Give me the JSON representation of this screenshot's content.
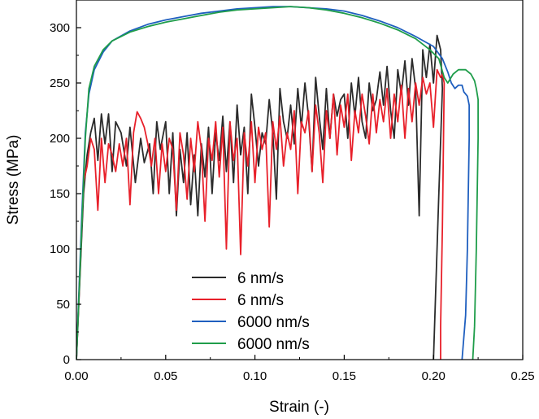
{
  "chart_data": {
    "type": "line",
    "xlabel": "Strain (-)",
    "ylabel": "Stress (MPa)",
    "xlim": [
      0,
      0.25
    ],
    "ylim": [
      0,
      325
    ],
    "xticks": [
      0.0,
      0.05,
      0.1,
      0.15,
      0.2,
      0.25
    ],
    "xtick_labels": [
      "0.00",
      "0.05",
      "0.10",
      "0.15",
      "0.20",
      "0.25"
    ],
    "yticks": [
      0,
      50,
      100,
      150,
      200,
      250,
      300
    ],
    "ytick_labels": [
      "0",
      "50",
      "100",
      "150",
      "200",
      "250",
      "300"
    ],
    "grid": false,
    "legend_position": "bottom-center",
    "series": [
      {
        "name": "6 nm/s",
        "color": "#2b2b2b",
        "points": [
          [
            0.0,
            0
          ],
          [
            0.004,
            150
          ],
          [
            0.006,
            185
          ],
          [
            0.008,
            205
          ],
          [
            0.01,
            218
          ],
          [
            0.012,
            180
          ],
          [
            0.014,
            222
          ],
          [
            0.016,
            195
          ],
          [
            0.018,
            222
          ],
          [
            0.02,
            170
          ],
          [
            0.022,
            215
          ],
          [
            0.025,
            205
          ],
          [
            0.028,
            175
          ],
          [
            0.03,
            210
          ],
          [
            0.033,
            160
          ],
          [
            0.036,
            200
          ],
          [
            0.038,
            178
          ],
          [
            0.041,
            195
          ],
          [
            0.043,
            150
          ],
          [
            0.045,
            215
          ],
          [
            0.047,
            190
          ],
          [
            0.05,
            215
          ],
          [
            0.052,
            150
          ],
          [
            0.054,
            205
          ],
          [
            0.056,
            130
          ],
          [
            0.058,
            190
          ],
          [
            0.06,
            160
          ],
          [
            0.062,
            205
          ],
          [
            0.064,
            140
          ],
          [
            0.066,
            185
          ],
          [
            0.068,
            130
          ],
          [
            0.07,
            195
          ],
          [
            0.072,
            165
          ],
          [
            0.074,
            210
          ],
          [
            0.076,
            150
          ],
          [
            0.078,
            205
          ],
          [
            0.08,
            180
          ],
          [
            0.082,
            220
          ],
          [
            0.084,
            170
          ],
          [
            0.086,
            215
          ],
          [
            0.088,
            160
          ],
          [
            0.09,
            230
          ],
          [
            0.092,
            185
          ],
          [
            0.094,
            210
          ],
          [
            0.096,
            150
          ],
          [
            0.098,
            240
          ],
          [
            0.1,
            210
          ],
          [
            0.102,
            175
          ],
          [
            0.104,
            205
          ],
          [
            0.106,
            195
          ],
          [
            0.108,
            235
          ],
          [
            0.11,
            205
          ],
          [
            0.112,
            145
          ],
          [
            0.114,
            245
          ],
          [
            0.116,
            215
          ],
          [
            0.118,
            200
          ],
          [
            0.12,
            230
          ],
          [
            0.122,
            195
          ],
          [
            0.124,
            245
          ],
          [
            0.126,
            210
          ],
          [
            0.128,
            250
          ],
          [
            0.13,
            220
          ],
          [
            0.132,
            170
          ],
          [
            0.134,
            255
          ],
          [
            0.136,
            220
          ],
          [
            0.138,
            190
          ],
          [
            0.14,
            245
          ],
          [
            0.142,
            200
          ],
          [
            0.144,
            240
          ],
          [
            0.146,
            220
          ],
          [
            0.148,
            235
          ],
          [
            0.15,
            240
          ],
          [
            0.152,
            200
          ],
          [
            0.154,
            250
          ],
          [
            0.156,
            220
          ],
          [
            0.158,
            255
          ],
          [
            0.16,
            215
          ],
          [
            0.162,
            200
          ],
          [
            0.164,
            250
          ],
          [
            0.166,
            225
          ],
          [
            0.168,
            235
          ],
          [
            0.17,
            260
          ],
          [
            0.172,
            230
          ],
          [
            0.174,
            265
          ],
          [
            0.176,
            225
          ],
          [
            0.178,
            200
          ],
          [
            0.18,
            262
          ],
          [
            0.182,
            240
          ],
          [
            0.184,
            270
          ],
          [
            0.186,
            230
          ],
          [
            0.188,
            272
          ],
          [
            0.19,
            245
          ],
          [
            0.192,
            130
          ],
          [
            0.194,
            280
          ],
          [
            0.196,
            255
          ],
          [
            0.198,
            285
          ],
          [
            0.2,
            250
          ],
          [
            0.202,
            293
          ],
          [
            0.204,
            280
          ],
          [
            0.205,
            245
          ],
          [
            0.203,
            150
          ],
          [
            0.201,
            50
          ],
          [
            0.2,
            0
          ]
        ]
      },
      {
        "name": "6 nm/s",
        "color": "#e8202a",
        "points": [
          [
            0.0,
            0
          ],
          [
            0.004,
            160
          ],
          [
            0.006,
            175
          ],
          [
            0.008,
            200
          ],
          [
            0.01,
            190
          ],
          [
            0.012,
            135
          ],
          [
            0.014,
            200
          ],
          [
            0.016,
            160
          ],
          [
            0.018,
            195
          ],
          [
            0.02,
            185
          ],
          [
            0.022,
            170
          ],
          [
            0.024,
            195
          ],
          [
            0.026,
            175
          ],
          [
            0.028,
            200
          ],
          [
            0.03,
            140
          ],
          [
            0.032,
            205
          ],
          [
            0.034,
            224
          ],
          [
            0.036,
            218
          ],
          [
            0.038,
            210
          ],
          [
            0.04,
            195
          ],
          [
            0.042,
            175
          ],
          [
            0.044,
            200
          ],
          [
            0.046,
            150
          ],
          [
            0.048,
            195
          ],
          [
            0.05,
            170
          ],
          [
            0.052,
            200
          ],
          [
            0.054,
            190
          ],
          [
            0.056,
            135
          ],
          [
            0.058,
            205
          ],
          [
            0.06,
            185
          ],
          [
            0.062,
            145
          ],
          [
            0.064,
            200
          ],
          [
            0.066,
            170
          ],
          [
            0.068,
            215
          ],
          [
            0.07,
            190
          ],
          [
            0.072,
            125
          ],
          [
            0.074,
            200
          ],
          [
            0.076,
            180
          ],
          [
            0.078,
            215
          ],
          [
            0.08,
            165
          ],
          [
            0.082,
            210
          ],
          [
            0.084,
            100
          ],
          [
            0.086,
            215
          ],
          [
            0.088,
            180
          ],
          [
            0.09,
            200
          ],
          [
            0.092,
            95
          ],
          [
            0.094,
            205
          ],
          [
            0.096,
            175
          ],
          [
            0.098,
            215
          ],
          [
            0.1,
            160
          ],
          [
            0.102,
            210
          ],
          [
            0.104,
            190
          ],
          [
            0.106,
            205
          ],
          [
            0.108,
            120
          ],
          [
            0.11,
            215
          ],
          [
            0.112,
            190
          ],
          [
            0.114,
            220
          ],
          [
            0.116,
            175
          ],
          [
            0.118,
            205
          ],
          [
            0.12,
            190
          ],
          [
            0.122,
            225
          ],
          [
            0.124,
            150
          ],
          [
            0.126,
            215
          ],
          [
            0.128,
            205
          ],
          [
            0.13,
            225
          ],
          [
            0.132,
            170
          ],
          [
            0.134,
            230
          ],
          [
            0.136,
            205
          ],
          [
            0.138,
            160
          ],
          [
            0.14,
            225
          ],
          [
            0.142,
            200
          ],
          [
            0.144,
            240
          ],
          [
            0.146,
            185
          ],
          [
            0.148,
            230
          ],
          [
            0.15,
            210
          ],
          [
            0.152,
            240
          ],
          [
            0.154,
            180
          ],
          [
            0.156,
            225
          ],
          [
            0.158,
            205
          ],
          [
            0.16,
            240
          ],
          [
            0.162,
            220
          ],
          [
            0.164,
            195
          ],
          [
            0.166,
            240
          ],
          [
            0.168,
            205
          ],
          [
            0.17,
            235
          ],
          [
            0.172,
            215
          ],
          [
            0.174,
            245
          ],
          [
            0.176,
            200
          ],
          [
            0.178,
            240
          ],
          [
            0.18,
            215
          ],
          [
            0.182,
            248
          ],
          [
            0.184,
            200
          ],
          [
            0.186,
            245
          ],
          [
            0.188,
            215
          ],
          [
            0.19,
            250
          ],
          [
            0.192,
            230
          ],
          [
            0.194,
            255
          ],
          [
            0.196,
            240
          ],
          [
            0.198,
            250
          ],
          [
            0.2,
            210
          ],
          [
            0.202,
            262
          ],
          [
            0.204,
            255
          ],
          [
            0.205,
            258
          ],
          [
            0.206,
            250
          ],
          [
            0.205,
            120
          ],
          [
            0.204,
            30
          ],
          [
            0.204,
            0
          ]
        ]
      },
      {
        "name": "6000 nm/s",
        "color": "#1f5fbf",
        "points": [
          [
            0.0,
            0
          ],
          [
            0.003,
            130
          ],
          [
            0.005,
            205
          ],
          [
            0.007,
            240
          ],
          [
            0.01,
            262
          ],
          [
            0.015,
            278
          ],
          [
            0.02,
            288
          ],
          [
            0.03,
            297
          ],
          [
            0.04,
            303
          ],
          [
            0.05,
            307
          ],
          [
            0.06,
            310
          ],
          [
            0.07,
            313
          ],
          [
            0.08,
            315
          ],
          [
            0.09,
            317
          ],
          [
            0.1,
            318
          ],
          [
            0.11,
            319
          ],
          [
            0.12,
            319
          ],
          [
            0.13,
            318
          ],
          [
            0.14,
            317
          ],
          [
            0.15,
            315
          ],
          [
            0.16,
            311
          ],
          [
            0.17,
            306
          ],
          [
            0.18,
            300
          ],
          [
            0.19,
            292
          ],
          [
            0.2,
            283
          ],
          [
            0.205,
            272
          ],
          [
            0.208,
            260
          ],
          [
            0.21,
            250
          ],
          [
            0.212,
            245
          ],
          [
            0.214,
            248
          ],
          [
            0.216,
            248
          ],
          [
            0.217,
            242
          ],
          [
            0.218,
            240
          ],
          [
            0.219,
            238
          ],
          [
            0.22,
            230
          ],
          [
            0.22,
            200
          ],
          [
            0.219,
            100
          ],
          [
            0.218,
            40
          ],
          [
            0.216,
            0
          ]
        ]
      },
      {
        "name": "6000 nm/s",
        "color": "#1f9d4a",
        "points": [
          [
            0.0,
            0
          ],
          [
            0.003,
            120
          ],
          [
            0.005,
            200
          ],
          [
            0.007,
            245
          ],
          [
            0.01,
            265
          ],
          [
            0.015,
            280
          ],
          [
            0.02,
            288
          ],
          [
            0.03,
            296
          ],
          [
            0.04,
            301
          ],
          [
            0.05,
            305
          ],
          [
            0.06,
            308
          ],
          [
            0.07,
            311
          ],
          [
            0.08,
            314
          ],
          [
            0.09,
            316
          ],
          [
            0.1,
            317
          ],
          [
            0.11,
            318
          ],
          [
            0.12,
            319
          ],
          [
            0.13,
            318
          ],
          [
            0.14,
            316
          ],
          [
            0.15,
            313
          ],
          [
            0.16,
            309
          ],
          [
            0.17,
            304
          ],
          [
            0.18,
            298
          ],
          [
            0.19,
            290
          ],
          [
            0.198,
            280
          ],
          [
            0.203,
            272
          ],
          [
            0.206,
            255
          ],
          [
            0.208,
            250
          ],
          [
            0.211,
            258
          ],
          [
            0.214,
            262
          ],
          [
            0.218,
            262
          ],
          [
            0.221,
            258
          ],
          [
            0.223,
            252
          ],
          [
            0.224,
            245
          ],
          [
            0.225,
            235
          ],
          [
            0.225,
            200
          ],
          [
            0.224,
            100
          ],
          [
            0.223,
            30
          ],
          [
            0.222,
            0
          ]
        ]
      }
    ]
  }
}
